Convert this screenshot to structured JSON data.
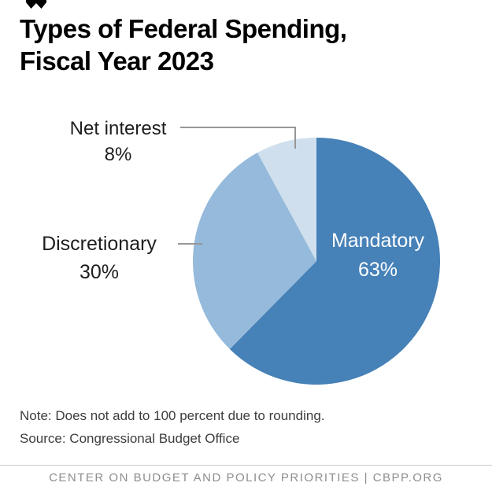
{
  "title": {
    "line1": "Types of Federal Spending,",
    "line2": "Fiscal Year 2023"
  },
  "chart_data": {
    "type": "pie",
    "title": "Types of Federal Spending, Fiscal Year 2023",
    "start_angle_deg": -90,
    "direction": "clockwise",
    "slices": [
      {
        "label": "Mandatory",
        "value": 63,
        "display": "63%",
        "color": "#4681b8",
        "label_position": "inside"
      },
      {
        "label": "Discretionary",
        "value": 30,
        "display": "30%",
        "color": "#95badb",
        "label_position": "outside-left"
      },
      {
        "label": "Net interest",
        "value": 8,
        "display": "8%",
        "color": "#cfdfed",
        "label_position": "outside-top-left"
      }
    ],
    "note": "Does not add to 100 percent due to rounding.",
    "source": "Congressional Budget Office",
    "leader_line_color": "#979797"
  },
  "notes": {
    "note": "Note: Does not add to 100 percent due to rounding.",
    "source": "Source: Congressional Budget Office"
  },
  "footer": {
    "text": "CENTER ON BUDGET AND POLICY PRIORITIES | CBPP.ORG"
  }
}
